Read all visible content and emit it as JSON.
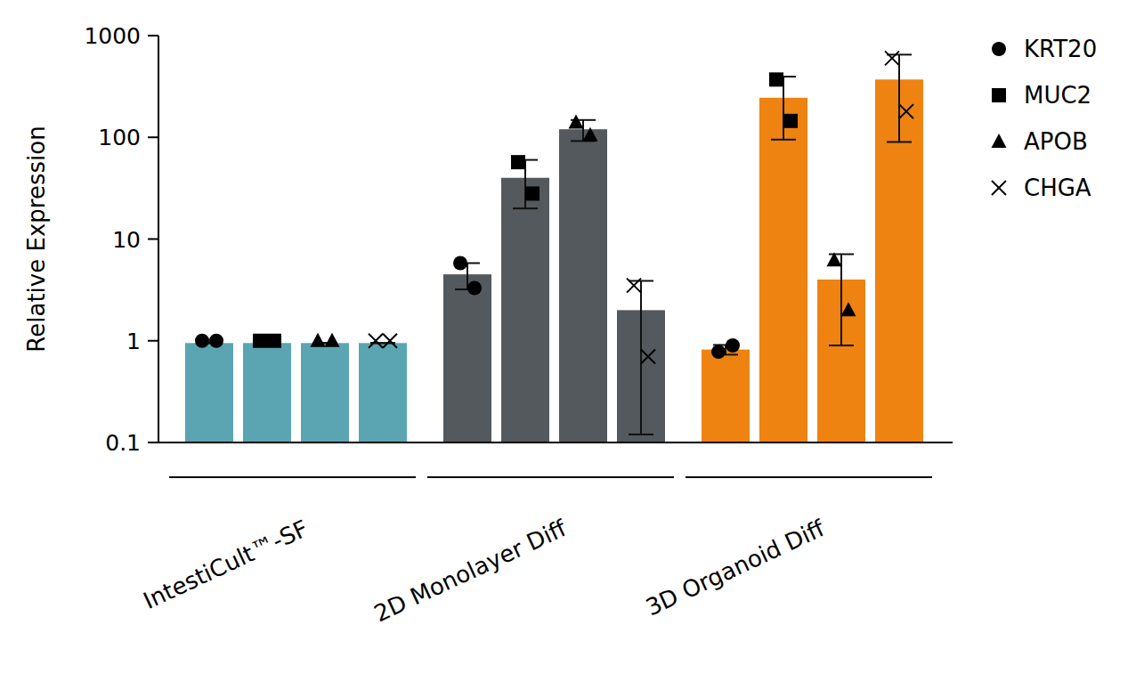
{
  "chart_data": {
    "type": "bar",
    "y_label": "Relative Expression",
    "categories": [
      "IntestiCult™-SF",
      "2D Monolayer Diff",
      "3D Organoid Diff"
    ],
    "log": "y",
    "ylim": [
      0.1,
      1000
    ],
    "yticks": [
      0.1,
      1,
      10,
      100,
      1000
    ],
    "grid": false,
    "legend": "top-right",
    "series": [
      {
        "name": "KRT20",
        "marker": "circle",
        "colors": [
          "#5aa5b1",
          "#53595c",
          "#ee8311"
        ],
        "values": [
          0.95,
          4.5,
          0.82
        ],
        "errors": [
          0,
          1.3,
          0.09
        ],
        "points": [
          [
            1,
            1
          ],
          [
            5.8,
            3.3
          ],
          [
            0.78,
            0.9
          ]
        ]
      },
      {
        "name": "MUC2",
        "marker": "square",
        "colors": [
          "#5aa5b1",
          "#53595c",
          "#ee8311"
        ],
        "values": [
          0.95,
          40,
          245
        ],
        "errors": [
          0,
          20,
          150
        ],
        "points": [
          [
            1,
            1
          ],
          [
            57,
            28
          ],
          [
            370,
            145
          ]
        ]
      },
      {
        "name": "APOB",
        "marker": "triangle",
        "colors": [
          "#5aa5b1",
          "#53595c",
          "#ee8311"
        ],
        "values": [
          0.95,
          120,
          4
        ],
        "errors": [
          0,
          28,
          3.1
        ],
        "points": [
          [
            1,
            1
          ],
          [
            140,
            105
          ],
          [
            6.2,
            2
          ]
        ]
      },
      {
        "name": "CHGA",
        "marker": "x",
        "colors": [
          "#5aa5b1",
          "#53595c",
          "#ee8311"
        ],
        "values": [
          0.95,
          2,
          370
        ],
        "errors": [
          0,
          1.88,
          280
        ],
        "points": [
          [
            1,
            1
          ],
          [
            3.5,
            0.7
          ],
          [
            600,
            180
          ]
        ]
      }
    ]
  }
}
